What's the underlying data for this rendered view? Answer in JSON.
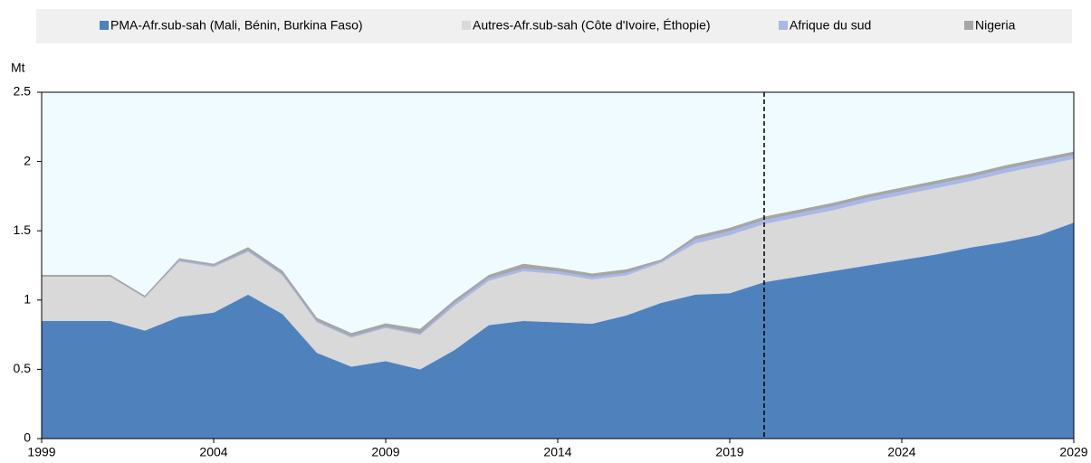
{
  "chart_data": {
    "type": "stacked_area",
    "y_label": "Mt",
    "x": [
      1999,
      2000,
      2001,
      2002,
      2003,
      2004,
      2005,
      2006,
      2007,
      2008,
      2009,
      2010,
      2011,
      2012,
      2013,
      2014,
      2015,
      2016,
      2017,
      2018,
      2019,
      2020,
      2021,
      2022,
      2023,
      2024,
      2025,
      2026,
      2027,
      2028,
      2029
    ],
    "series": [
      {
        "name": "PMA-Afr.sub-sah (Mali, Bénin, Burkina Faso)",
        "color": "#4f81bd",
        "values": [
          0.85,
          0.85,
          0.85,
          0.78,
          0.88,
          0.91,
          1.04,
          0.9,
          0.62,
          0.52,
          0.56,
          0.5,
          0.64,
          0.82,
          0.85,
          0.84,
          0.83,
          0.89,
          0.98,
          1.04,
          1.05,
          1.13,
          1.17,
          1.21,
          1.25,
          1.29,
          1.33,
          1.38,
          1.42,
          1.47,
          1.56
        ]
      },
      {
        "name": "Autres-Afr.sub-sah (Côte d'Ivoire, Éthopie)",
        "color": "#d9d9d9",
        "values": [
          0.32,
          0.32,
          0.32,
          0.24,
          0.4,
          0.33,
          0.31,
          0.28,
          0.22,
          0.21,
          0.24,
          0.25,
          0.32,
          0.32,
          0.36,
          0.35,
          0.32,
          0.29,
          0.29,
          0.37,
          0.42,
          0.42,
          0.43,
          0.44,
          0.46,
          0.47,
          0.48,
          0.48,
          0.5,
          0.5,
          0.46
        ]
      },
      {
        "name": "Afrique du sud",
        "color": "#a9b8e6",
        "values": [
          0,
          0,
          0,
          0,
          0.01,
          0.01,
          0.01,
          0.01,
          0.01,
          0.01,
          0.01,
          0.01,
          0.02,
          0.02,
          0.02,
          0.02,
          0.02,
          0.02,
          0.01,
          0.03,
          0.03,
          0.03,
          0.03,
          0.03,
          0.03,
          0.03,
          0.03,
          0.03,
          0.03,
          0.03,
          0.03
        ]
      },
      {
        "name": "Nigeria",
        "color": "#a6a6a6",
        "values": [
          0.01,
          0.01,
          0.01,
          0.01,
          0.01,
          0.01,
          0.02,
          0.02,
          0.02,
          0.02,
          0.02,
          0.03,
          0.02,
          0.02,
          0.03,
          0.02,
          0.02,
          0.02,
          0.01,
          0.02,
          0.02,
          0.02,
          0.02,
          0.02,
          0.02,
          0.02,
          0.02,
          0.02,
          0.02,
          0.02,
          0.02
        ]
      }
    ],
    "xlim": [
      1999,
      2029
    ],
    "xticks": [
      1999,
      2004,
      2009,
      2014,
      2019,
      2024,
      2029
    ],
    "ylim": [
      0,
      2.5
    ],
    "yticks": [
      0,
      0.5,
      1,
      1.5,
      2,
      2.5
    ],
    "vline_x": 2020,
    "plot_background": "#effbfe",
    "legend": "top"
  }
}
